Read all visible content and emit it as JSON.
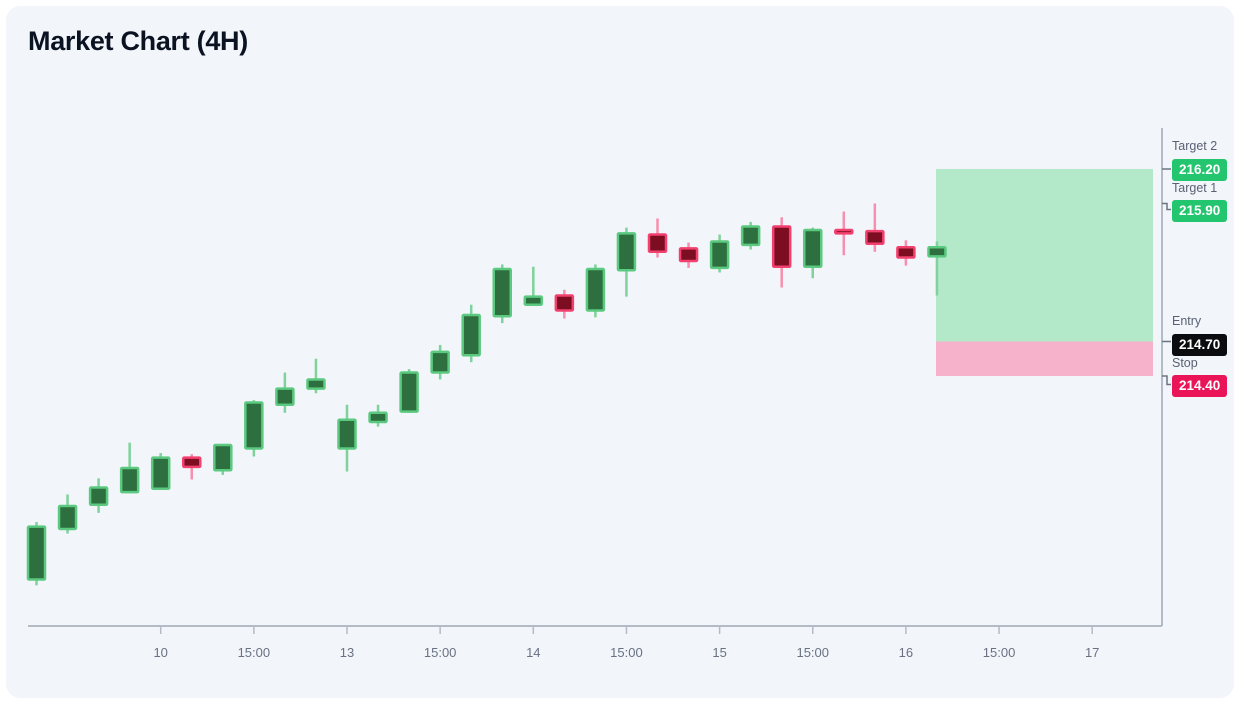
{
  "page": {
    "title": "Market Chart (4H)"
  },
  "chart_data": {
    "type": "candlestick",
    "title": "Market Chart (4H)",
    "interval": "4H",
    "x_axis": {
      "tick_labels": [
        "10",
        "15:00",
        "13",
        "15:00",
        "14",
        "15:00",
        "15",
        "15:00",
        "16",
        "15:00",
        "17"
      ]
    },
    "y_axis": {
      "visible_range": [
        212.2,
        216.6
      ],
      "grid": false
    },
    "candles": [
      {
        "o": 212.63,
        "h": 213.13,
        "l": 212.58,
        "c": 213.09
      },
      {
        "o": 213.07,
        "h": 213.37,
        "l": 213.03,
        "c": 213.27
      },
      {
        "o": 213.28,
        "h": 213.51,
        "l": 213.21,
        "c": 213.43
      },
      {
        "o": 213.39,
        "h": 213.82,
        "l": 213.38,
        "c": 213.6
      },
      {
        "o": 213.42,
        "h": 213.73,
        "l": 213.42,
        "c": 213.69
      },
      {
        "o": 213.69,
        "h": 213.72,
        "l": 213.5,
        "c": 213.61
      },
      {
        "o": 213.58,
        "h": 213.8,
        "l": 213.54,
        "c": 213.8
      },
      {
        "o": 213.77,
        "h": 214.19,
        "l": 213.7,
        "c": 214.17
      },
      {
        "o": 214.15,
        "h": 214.43,
        "l": 214.08,
        "c": 214.29
      },
      {
        "o": 214.29,
        "h": 214.55,
        "l": 214.25,
        "c": 214.37
      },
      {
        "o": 213.77,
        "h": 214.15,
        "l": 213.57,
        "c": 214.02
      },
      {
        "o": 214.0,
        "h": 214.15,
        "l": 213.96,
        "c": 214.08
      },
      {
        "o": 214.09,
        "h": 214.46,
        "l": 214.08,
        "c": 214.43
      },
      {
        "o": 214.43,
        "h": 214.67,
        "l": 214.37,
        "c": 214.61
      },
      {
        "o": 214.58,
        "h": 215.02,
        "l": 214.52,
        "c": 214.93
      },
      {
        "o": 214.92,
        "h": 215.37,
        "l": 214.86,
        "c": 215.33
      },
      {
        "o": 215.02,
        "h": 215.35,
        "l": 215.02,
        "c": 215.09
      },
      {
        "o": 215.1,
        "h": 215.15,
        "l": 214.9,
        "c": 214.97
      },
      {
        "o": 214.97,
        "h": 215.37,
        "l": 214.91,
        "c": 215.33
      },
      {
        "o": 215.32,
        "h": 215.69,
        "l": 215.09,
        "c": 215.64
      },
      {
        "o": 215.63,
        "h": 215.77,
        "l": 215.43,
        "c": 215.48
      },
      {
        "o": 215.51,
        "h": 215.56,
        "l": 215.34,
        "c": 215.4
      },
      {
        "o": 215.34,
        "h": 215.63,
        "l": 215.3,
        "c": 215.57
      },
      {
        "o": 215.54,
        "h": 215.74,
        "l": 215.5,
        "c": 215.7
      },
      {
        "o": 215.7,
        "h": 215.78,
        "l": 215.17,
        "c": 215.35
      },
      {
        "o": 215.35,
        "h": 215.69,
        "l": 215.25,
        "c": 215.67
      },
      {
        "o": 215.67,
        "h": 215.83,
        "l": 215.45,
        "c": 215.64
      },
      {
        "o": 215.66,
        "h": 215.9,
        "l": 215.48,
        "c": 215.55
      },
      {
        "o": 215.52,
        "h": 215.58,
        "l": 215.36,
        "c": 215.43
      },
      {
        "o": 215.44,
        "h": 215.57,
        "l": 215.1,
        "c": 215.52
      }
    ],
    "annotations": {
      "target_2": {
        "label": "Target 2",
        "price": "216.20",
        "value": 216.2,
        "badge_color": "#23c56e"
      },
      "target_1": {
        "label": "Target 1",
        "price": "215.90",
        "value": 215.9,
        "badge_color": "#23c56e"
      },
      "entry": {
        "label": "Entry",
        "price": "214.70",
        "value": 214.7,
        "badge_color": "#0a0c10"
      },
      "stop": {
        "label": "Stop",
        "price": "214.40",
        "value": 214.4,
        "badge_color": "#ea1459"
      }
    },
    "zones": {
      "profit": {
        "from": 214.7,
        "to": 216.2,
        "color": "#b3e9c9"
      },
      "loss": {
        "from": 214.4,
        "to": 214.7,
        "color": "#f7b2cb"
      }
    },
    "colors": {
      "up_body": "#2d6f3f",
      "up_border": "#5bc97f",
      "up_wick": "#7fd29b",
      "down_body": "#7d0e22",
      "down_border": "#f2406f",
      "down_wick": "#f78fae",
      "axis_line": "#b4bbc7"
    }
  }
}
